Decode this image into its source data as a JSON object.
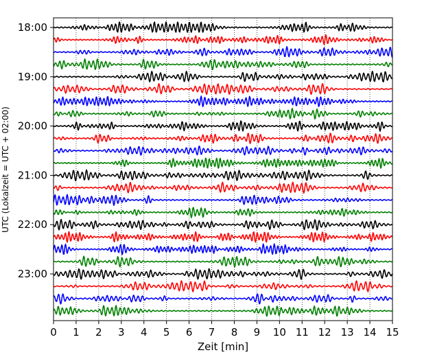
{
  "chart_data": {
    "type": "line",
    "title": "",
    "xlabel": "Zeit  [min]",
    "ylabel": "UTC (Lokalzeit = UTC + 02:00)",
    "xlim": [
      0,
      15
    ],
    "x_ticks": [
      "0",
      "1",
      "2",
      "3",
      "4",
      "5",
      "6",
      "7",
      "8",
      "9",
      "10",
      "11",
      "12",
      "13",
      "14",
      "15"
    ],
    "y_tick_labels": [
      "18:00",
      "19:00",
      "20:00",
      "21:00",
      "22:00",
      "23:00"
    ],
    "grid": "vertical dotted at each minute",
    "trace_colors": [
      "#000000",
      "#ff0000",
      "#0000ff",
      "#008000"
    ],
    "rows": [
      {
        "time": "18:00",
        "color": "#000000"
      },
      {
        "time": "18:15",
        "color": "#ff0000"
      },
      {
        "time": "18:30",
        "color": "#0000ff"
      },
      {
        "time": "18:45",
        "color": "#008000"
      },
      {
        "time": "19:00",
        "color": "#000000"
      },
      {
        "time": "19:15",
        "color": "#ff0000"
      },
      {
        "time": "19:30",
        "color": "#0000ff"
      },
      {
        "time": "19:45",
        "color": "#008000"
      },
      {
        "time": "20:00",
        "color": "#000000"
      },
      {
        "time": "20:15",
        "color": "#ff0000"
      },
      {
        "time": "20:30",
        "color": "#0000ff"
      },
      {
        "time": "20:45",
        "color": "#008000"
      },
      {
        "time": "21:00",
        "color": "#000000"
      },
      {
        "time": "21:15",
        "color": "#ff0000"
      },
      {
        "time": "21:30",
        "color": "#0000ff"
      },
      {
        "time": "21:45",
        "color": "#008000"
      },
      {
        "time": "22:00",
        "color": "#000000"
      },
      {
        "time": "22:15",
        "color": "#ff0000"
      },
      {
        "time": "22:30",
        "color": "#0000ff"
      },
      {
        "time": "22:45",
        "color": "#008000"
      },
      {
        "time": "23:00",
        "color": "#000000"
      },
      {
        "time": "23:15",
        "color": "#ff0000"
      },
      {
        "time": "23:30",
        "color": "#0000ff"
      },
      {
        "time": "23:45",
        "color": "#008000"
      }
    ]
  }
}
